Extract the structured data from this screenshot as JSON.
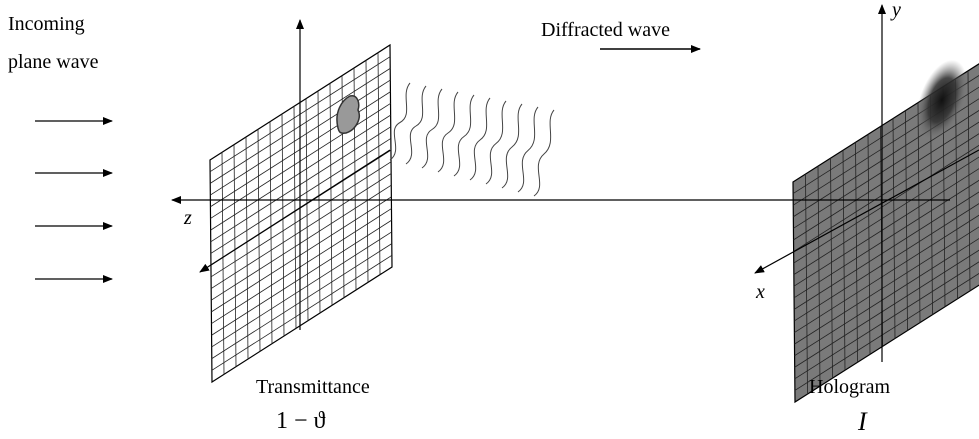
{
  "incoming_wave": {
    "line1": "Incoming",
    "line2": "plane wave"
  },
  "diffracted_wave": "Diffracted wave",
  "axes": {
    "z": "z",
    "x": "x",
    "y": "y"
  },
  "transmittance": {
    "label": "Transmittance",
    "symbol": "1 − ϑ"
  },
  "hologram": {
    "label": "Hologram",
    "symbol": "I"
  }
}
